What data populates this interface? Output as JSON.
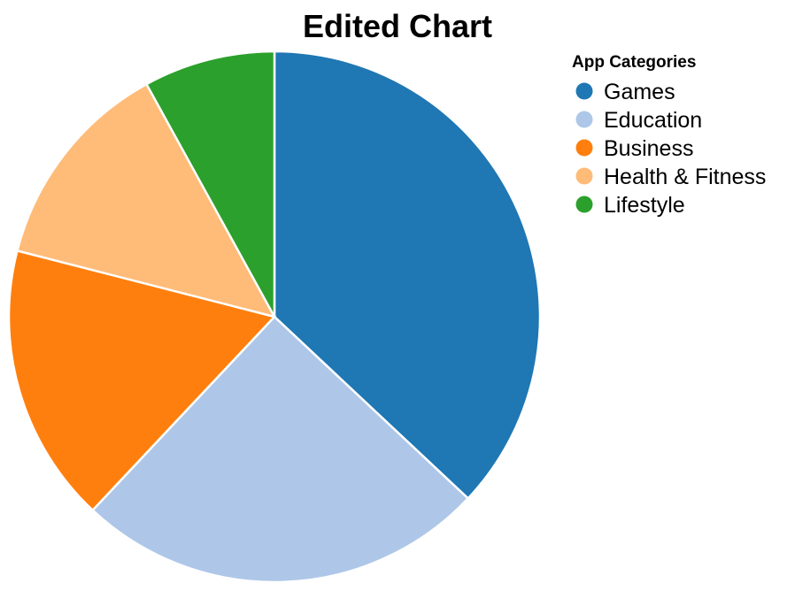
{
  "chart_data": {
    "type": "pie",
    "title": "Edited Chart",
    "legend_title": "App Categories",
    "legend_position": "top-right",
    "categories": [
      "Games",
      "Education",
      "Business",
      "Health & Fitness",
      "Lifestyle"
    ],
    "values": [
      37,
      25,
      17,
      13,
      8
    ],
    "colors": [
      "#1f77b4",
      "#aec7e8",
      "#ff7f0e",
      "#ffbb78",
      "#2ca02c"
    ]
  }
}
